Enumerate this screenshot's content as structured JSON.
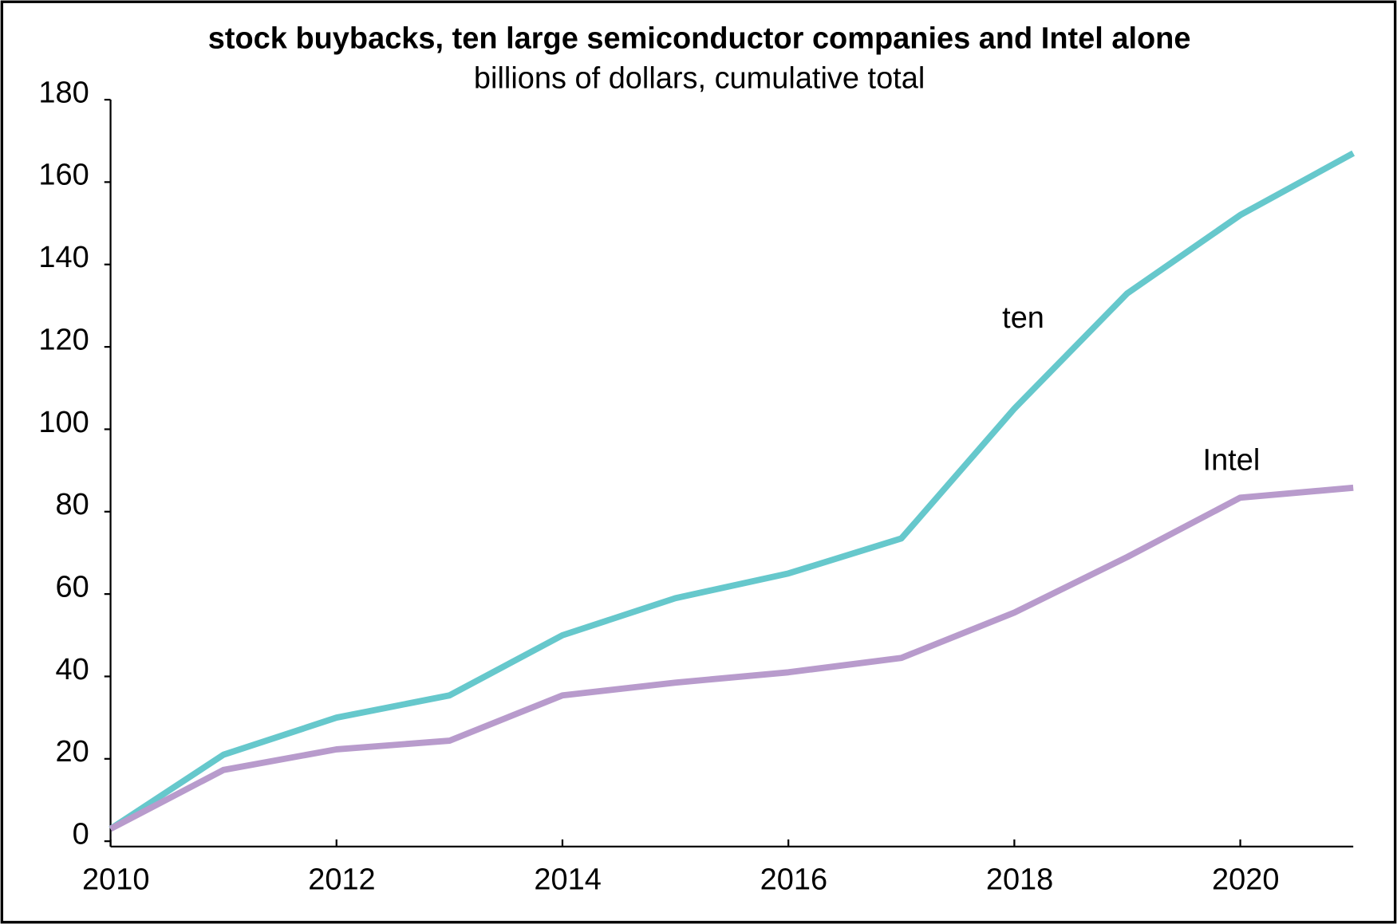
{
  "chart_data": {
    "type": "line",
    "title": "stock buybacks, ten large semiconductor companies and Intel alone",
    "subtitle": "billions of dollars, cumulative total",
    "x": [
      2010,
      2011,
      2012,
      2013,
      2014,
      2015,
      2016,
      2017,
      2018,
      2019,
      2020,
      2021
    ],
    "series": [
      {
        "name": "ten",
        "color": "#66c8cc",
        "values": [
          3,
          21,
          30,
          35.4,
          50,
          59,
          65,
          73.5,
          105,
          133,
          152,
          167
        ]
      },
      {
        "name": "Intel",
        "color": "#b89bcc",
        "values": [
          3,
          17.3,
          22.3,
          24.4,
          35.4,
          38.5,
          41,
          44.5,
          55.5,
          69,
          83.4,
          85.8
        ]
      }
    ],
    "xlim": [
      2010,
      2021
    ],
    "xticks": [
      2010,
      2012,
      2014,
      2016,
      2018,
      2020
    ],
    "ylim": [
      0,
      180
    ],
    "yticks": [
      0,
      20,
      40,
      60,
      80,
      100,
      120,
      140,
      160,
      180
    ],
    "grid": false
  }
}
